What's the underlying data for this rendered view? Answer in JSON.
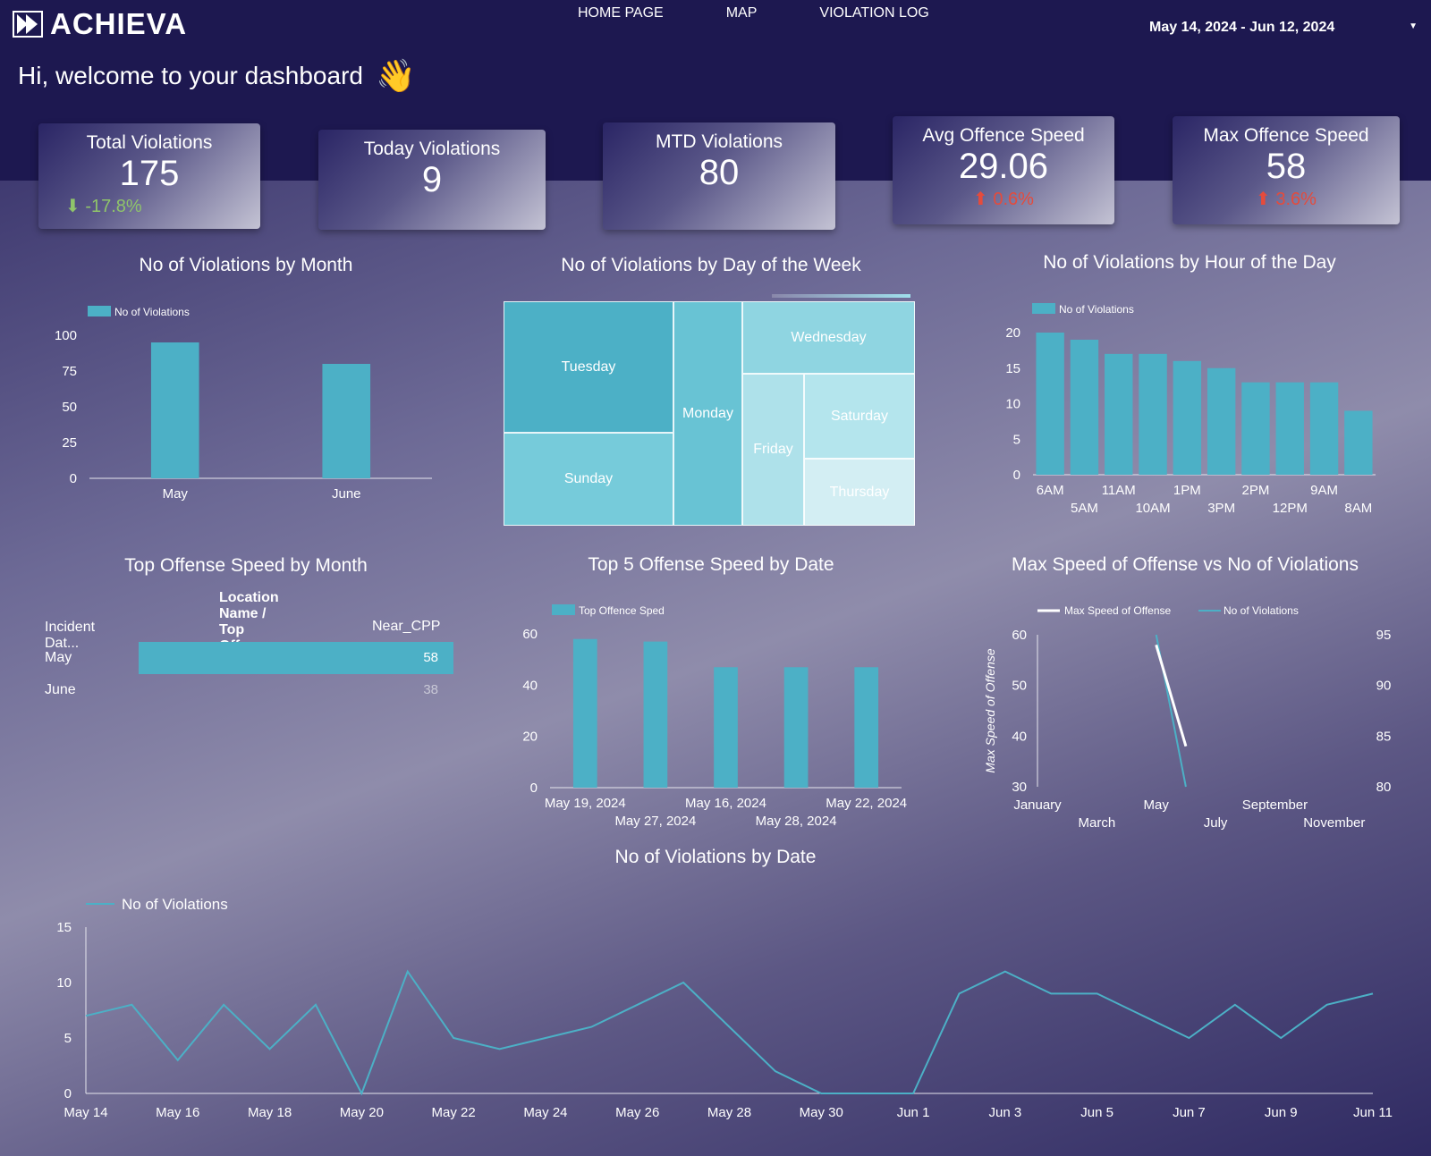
{
  "brand": {
    "name": "ACHIEVA"
  },
  "nav": {
    "items": [
      "HOME PAGE",
      "MAP",
      "VIOLATION LOG"
    ]
  },
  "date_range": {
    "value": "May 14, 2024 - Jun 12, 2024"
  },
  "welcome": {
    "text": "Hi, welcome to your dashboard",
    "emoji": "👋"
  },
  "kpis": [
    {
      "title": "Total Violations",
      "value": "175",
      "delta": "-17.8%",
      "trend": "down"
    },
    {
      "title": "Today Violations",
      "value": "9",
      "delta": "",
      "trend": "none"
    },
    {
      "title": "MTD Violations",
      "value": "80",
      "delta": "",
      "trend": "none"
    },
    {
      "title": "Avg Offence Speed",
      "value": "29.06",
      "delta": "0.6%",
      "trend": "up"
    },
    {
      "title": "Max Offence Speed",
      "value": "58",
      "delta": "3.6%",
      "trend": "up"
    }
  ],
  "titles": {
    "by_month": "No of Violations by Month",
    "by_dow": "No of Violations by Day of the Week",
    "by_hour": "No of Violations by Hour of the Day",
    "top_speed_month": "Top Offense Speed by Month",
    "top5_date": "Top 5 Offense Speed by Date",
    "max_vs_count": "Max Speed of Offense vs No of Violations",
    "by_date": "No of Violations by Date"
  },
  "top_speed_table": {
    "header": "Location Name / Top Offence Sped",
    "col_label": "Incident Dat...",
    "col_location": "Near_CPP",
    "rows": [
      {
        "label": "May",
        "value": 58
      },
      {
        "label": "June",
        "value": 38
      }
    ]
  },
  "colors": {
    "bar": "#4cb0c6",
    "background_top": "#1d1850"
  },
  "chart_data": [
    {
      "id": "by_month",
      "type": "bar",
      "title": "No of Violations by Month",
      "legend": "No of Violations",
      "categories": [
        "May",
        "June"
      ],
      "values": [
        95,
        80
      ],
      "yticks": [
        0,
        25,
        50,
        75,
        100
      ],
      "ylim": [
        0,
        100
      ]
    },
    {
      "id": "by_dow",
      "type": "treemap",
      "title": "No of Violations by Day of the Week",
      "categories": [
        "Tuesday",
        "Sunday",
        "Monday",
        "Wednesday",
        "Friday",
        "Saturday",
        "Thursday"
      ]
    },
    {
      "id": "by_hour",
      "type": "bar",
      "title": "No of Violations by Hour of the Day",
      "legend": "No of Violations",
      "categories": [
        "6AM",
        "5AM",
        "11AM",
        "10AM",
        "1PM",
        "3PM",
        "2PM",
        "12PM",
        "9AM",
        "8AM"
      ],
      "values": [
        20,
        19,
        17,
        17,
        16,
        15,
        13,
        13,
        13,
        9
      ],
      "yticks": [
        0,
        5,
        10,
        15,
        20
      ],
      "ylim": [
        0,
        20
      ]
    },
    {
      "id": "top5_date",
      "type": "bar",
      "title": "Top 5 Offense Speed by Date",
      "legend": "Top Offence Sped",
      "categories": [
        "May 19, 2024",
        "May 27, 2024",
        "May 16, 2024",
        "May 28, 2024",
        "May 22, 2024"
      ],
      "values": [
        58,
        57,
        47,
        47,
        47
      ],
      "yticks": [
        0,
        20,
        40,
        60
      ],
      "ylim": [
        0,
        60
      ]
    },
    {
      "id": "max_vs_count",
      "type": "line",
      "title": "Max Speed of Offense vs No of Violations",
      "x_months": [
        "January",
        "March",
        "May",
        "July",
        "September",
        "November"
      ],
      "series": [
        {
          "name": "Max Speed of Offense",
          "axis": "left",
          "points": [
            {
              "x": 5,
              "y": 58
            },
            {
              "x": 6,
              "y": 38
            }
          ]
        },
        {
          "name": "No of Violations",
          "axis": "right",
          "points": [
            {
              "x": 5,
              "y": 95
            },
            {
              "x": 6,
              "y": 80
            }
          ]
        }
      ],
      "ylabel_left": "Max Speed of Offense",
      "ylim_left": [
        30,
        60
      ],
      "yticks_left": [
        30,
        40,
        50,
        60
      ],
      "ylabel_right": "No of Violations",
      "ylim_right": [
        80,
        95
      ],
      "yticks_right": [
        80,
        85,
        90,
        95
      ]
    },
    {
      "id": "by_date",
      "type": "line",
      "title": "No of Violations by Date",
      "legend": "No of Violations",
      "x_labels": [
        "May 14",
        "May 16",
        "May 18",
        "May 20",
        "May 22",
        "May 24",
        "May 26",
        "May 28",
        "May 30",
        "Jun 1",
        "Jun 3",
        "Jun 5",
        "Jun 7",
        "Jun 9",
        "Jun 11"
      ],
      "values": [
        7,
        8,
        3,
        8,
        4,
        8,
        0,
        11,
        5,
        4,
        5,
        6,
        8,
        10,
        6,
        2,
        0,
        0,
        0,
        9,
        11,
        9,
        9,
        7,
        5,
        8,
        5,
        8,
        9
      ],
      "yticks": [
        0,
        5,
        10,
        15
      ],
      "ylim": [
        0,
        15
      ]
    }
  ]
}
